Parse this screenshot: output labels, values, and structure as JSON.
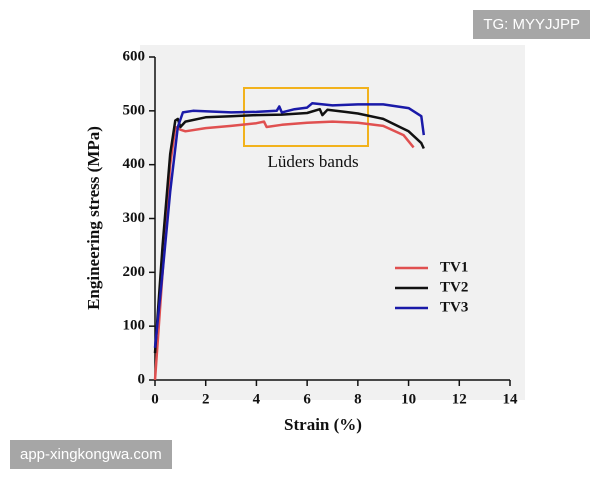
{
  "chart_data": {
    "type": "line",
    "x_label": "Strain (%)",
    "y_label": "Engineering stress (MPa)",
    "annotation": "Lüders bands",
    "xlim": [
      0,
      14
    ],
    "xticks": [
      0,
      2,
      4,
      6,
      8,
      10,
      12,
      14
    ],
    "ylim": [
      0,
      600
    ],
    "yticks": [
      0,
      100,
      200,
      300,
      400,
      500,
      600
    ],
    "series": [
      {
        "name": "TV1",
        "color": "#e05050",
        "x": [
          0,
          0.3,
          0.6,
          0.8,
          1.0,
          1.2,
          2,
          3,
          4,
          4.3,
          4.4,
          5,
          6,
          7,
          8,
          9,
          9.8,
          10.2
        ],
        "values": [
          0,
          200,
          400,
          470,
          465,
          462,
          468,
          472,
          477,
          480,
          470,
          474,
          478,
          480,
          478,
          472,
          455,
          432
        ]
      },
      {
        "name": "TV2",
        "color": "#111111",
        "x": [
          0,
          0.3,
          0.6,
          0.8,
          0.9,
          1.0,
          1.2,
          2,
          3,
          4,
          5,
          6,
          6.5,
          6.6,
          6.8,
          7.5,
          8,
          9,
          10,
          10.5,
          10.6
        ],
        "values": [
          50,
          250,
          420,
          482,
          485,
          470,
          480,
          488,
          490,
          492,
          493,
          496,
          503,
          492,
          502,
          498,
          495,
          485,
          462,
          440,
          430
        ]
      },
      {
        "name": "TV3",
        "color": "#1a1aa8",
        "x": [
          0,
          0.3,
          0.6,
          0.9,
          1.1,
          1.5,
          3,
          4,
          4.8,
          4.9,
          5,
          5.5,
          6,
          6.2,
          7,
          8,
          9,
          10,
          10.5,
          10.6
        ],
        "values": [
          60,
          200,
          350,
          470,
          497,
          500,
          497,
          498,
          500,
          508,
          497,
          503,
          506,
          514,
          510,
          512,
          512,
          505,
          490,
          455
        ]
      }
    ]
  },
  "watermarks": {
    "top_right": "TG: MYYJJPP",
    "bottom_left": "app-xingkongwa.com"
  }
}
